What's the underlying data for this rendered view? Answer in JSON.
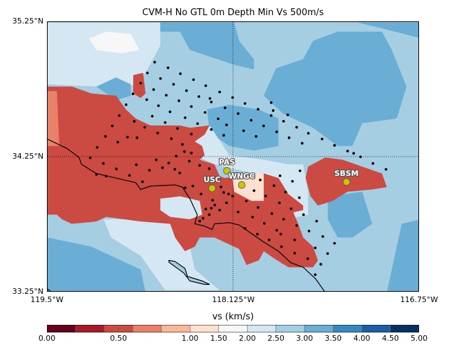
{
  "title": "CVM-H No GTL 0m Depth Min Vs 500m/s",
  "axes": {
    "lat_labels": [
      "35.25°N",
      "34.25°N",
      "33.25°N"
    ],
    "lon_labels": [
      "119.5°W",
      "118.125°W",
      "116.75°W"
    ],
    "lon_range": [
      -119.5,
      -116.75
    ],
    "lat_range": [
      33.25,
      35.25
    ],
    "gridlines": {
      "lon": -118.125,
      "lat": 34.25
    }
  },
  "colorbar": {
    "label": "vs (km/s)",
    "boundaries": [
      0,
      0.2,
      0.4,
      0.5,
      0.6,
      0.8,
      1.0,
      1.5,
      2.0,
      2.5,
      3.0,
      3.5,
      4.0,
      4.5,
      5.0
    ],
    "colors": [
      "#67001f",
      "#a51b2b",
      "#cb4a42",
      "#cb4a42",
      "#e8806a",
      "#f7b89b",
      "#fde0d0",
      "#f7f7f7",
      "#d4e7f2",
      "#a6cee3",
      "#6aadd5",
      "#3787c0",
      "#1d5ea8",
      "#083163"
    ],
    "tick_labels": [
      "0.00",
      "0.50",
      "1.00",
      "1.50",
      "2.00",
      "2.50",
      "3.00",
      "3.50",
      "4.00",
      "4.50",
      "5.00"
    ],
    "tick_values": [
      0,
      0.5,
      1.0,
      1.5,
      2.0,
      2.5,
      3.0,
      3.5,
      4.0,
      4.5,
      5.0
    ]
  },
  "labeled_stations": [
    {
      "name": "PAS",
      "lon": -118.17,
      "lat": 34.144
    },
    {
      "name": "USC",
      "lon": -118.28,
      "lat": 34.014
    },
    {
      "name": "WNGC",
      "lon": -118.06,
      "lat": 34.039
    },
    {
      "name": "SBSM",
      "lon": -117.283,
      "lat": 34.061
    }
  ],
  "station_color": "#c8c800",
  "stations": [
    [
      -118.706,
      34.952
    ],
    [
      -118.607,
      34.91
    ],
    [
      -118.76,
      34.872
    ],
    [
      -118.515,
      34.866
    ],
    [
      -118.663,
      34.83
    ],
    [
      -118.418,
      34.822
    ],
    [
      -118.566,
      34.787
    ],
    [
      -118.327,
      34.777
    ],
    [
      -118.81,
      34.796
    ],
    [
      -118.714,
      34.748
    ],
    [
      -118.47,
      34.74
    ],
    [
      -118.224,
      34.73
    ],
    [
      -118.867,
      34.716
    ],
    [
      -118.62,
      34.706
    ],
    [
      -118.378,
      34.696
    ],
    [
      -118.128,
      34.689
    ],
    [
      -118.296,
      34.682
    ],
    [
      -118.765,
      34.673
    ],
    [
      -118.526,
      34.665
    ],
    [
      -118.286,
      34.656
    ],
    [
      -118.036,
      34.645
    ],
    [
      -117.842,
      34.651
    ],
    [
      -118.918,
      34.636
    ],
    [
      -118.678,
      34.628
    ],
    [
      -118.434,
      34.622
    ],
    [
      -118.184,
      34.612
    ],
    [
      -117.939,
      34.602
    ],
    [
      -117.827,
      34.592
    ],
    [
      -118.592,
      34.583
    ],
    [
      -118.332,
      34.578
    ],
    [
      -118.087,
      34.57
    ],
    [
      -118.969,
      34.555
    ],
    [
      -118.724,
      34.55
    ],
    [
      -118.48,
      34.539
    ],
    [
      -118.235,
      34.531
    ],
    [
      -117.99,
      34.52
    ],
    [
      -117.719,
      34.56
    ],
    [
      -117.842,
      34.555
    ],
    [
      -118.857,
      34.512
    ],
    [
      -118.628,
      34.503
    ],
    [
      -118.388,
      34.495
    ],
    [
      -118.173,
      34.485
    ],
    [
      -117.898,
      34.478
    ],
    [
      -117.75,
      34.513
    ],
    [
      -117.653,
      34.468
    ],
    [
      -119.02,
      34.478
    ],
    [
      -118.78,
      34.468
    ],
    [
      -118.536,
      34.459
    ],
    [
      -118.286,
      34.451
    ],
    [
      -118.046,
      34.442
    ],
    [
      -117.801,
      34.434
    ],
    [
      -117.566,
      34.423
    ],
    [
      -119.071,
      34.4
    ],
    [
      -118.908,
      34.395
    ],
    [
      -118.837,
      34.39
    ],
    [
      -118.684,
      34.425
    ],
    [
      -118.582,
      34.383
    ],
    [
      -118.434,
      34.417
    ],
    [
      -118.194,
      34.408
    ],
    [
      -117.954,
      34.4
    ],
    [
      -117.709,
      34.39
    ],
    [
      -117.464,
      34.381
    ],
    [
      -117.612,
      34.349
    ],
    [
      -117.372,
      34.333
    ],
    [
      -117.275,
      34.291
    ],
    [
      -117.23,
      34.274
    ],
    [
      -117.179,
      34.248
    ],
    [
      -117.087,
      34.199
    ],
    [
      -116.99,
      34.155
    ],
    [
      -119.133,
      34.318
    ],
    [
      -118.98,
      34.357
    ],
    [
      -119.184,
      34.241
    ],
    [
      -119.087,
      34.199
    ],
    [
      -119.138,
      34.117
    ],
    [
      -119.066,
      34.104
    ],
    [
      -118.99,
      34.158
    ],
    [
      -118.893,
      34.11
    ],
    [
      -118.842,
      34.189
    ],
    [
      -118.796,
      34.063
    ],
    [
      -118.745,
      34.148
    ],
    [
      -118.694,
      34.226
    ],
    [
      -118.648,
      34.167
    ],
    [
      -118.602,
      34.202
    ],
    [
      -118.556,
      34.155
    ],
    [
      -118.5,
      34.34
    ],
    [
      -118.485,
      34.287
    ],
    [
      -118.434,
      34.277
    ],
    [
      -118.372,
      34.184
    ],
    [
      -118.546,
      34.253
    ],
    [
      -118.449,
      34.216
    ],
    [
      -118.301,
      34.16
    ],
    [
      -118.52,
      34.128
    ],
    [
      -118.423,
      34.031
    ],
    [
      -118.48,
      34.017
    ],
    [
      -118.362,
      33.971
    ],
    [
      -118.276,
      33.925
    ],
    [
      -118.214,
      34.024
    ],
    [
      -118.194,
      33.983
    ],
    [
      -118.158,
      33.971
    ],
    [
      -118.128,
      33.957
    ],
    [
      -118.26,
      33.889
    ],
    [
      -118.327,
      33.86
    ],
    [
      -118.224,
      33.852
    ],
    [
      -118.173,
      33.906
    ],
    [
      -118.087,
      33.838
    ],
    [
      -118.026,
      33.92
    ],
    [
      -117.939,
      33.872
    ],
    [
      -117.969,
      33.997
    ],
    [
      -117.883,
      33.957
    ],
    [
      -117.923,
      34.076
    ],
    [
      -117.781,
      33.906
    ],
    [
      -117.837,
      33.826
    ],
    [
      -117.735,
      33.986
    ],
    [
      -117.694,
      33.862
    ],
    [
      -117.821,
      34.034
    ],
    [
      -117.684,
      34.066
    ],
    [
      -117.633,
      33.944
    ],
    [
      -117.628,
      34.144
    ],
    [
      -117.776,
      34.107
    ],
    [
      -118.286,
      33.866
    ],
    [
      -118.347,
      33.791
    ],
    [
      -118.301,
      33.818
    ],
    [
      -118.372,
      33.77
    ],
    [
      -117.98,
      33.8
    ],
    [
      -117.893,
      33.753
    ],
    [
      -117.801,
      33.702
    ],
    [
      -117.75,
      33.784
    ],
    [
      -117.653,
      33.737
    ],
    [
      -117.602,
      33.818
    ],
    [
      -117.505,
      33.77
    ],
    [
      -118.036,
      33.716
    ],
    [
      -117.944,
      33.673
    ],
    [
      -117.857,
      33.631
    ],
    [
      -117.771,
      33.673
    ],
    [
      -117.668,
      33.631
    ],
    [
      -117.561,
      33.696
    ],
    [
      -117.459,
      33.656
    ],
    [
      -117.372,
      33.605
    ],
    [
      -117.515,
      33.571
    ],
    [
      -117.423,
      33.529
    ],
    [
      -117.765,
      33.58
    ],
    [
      -117.668,
      33.532
    ],
    [
      -117.571,
      33.491
    ],
    [
      -117.474,
      33.449
    ],
    [
      -117.515,
      33.372
    ]
  ]
}
